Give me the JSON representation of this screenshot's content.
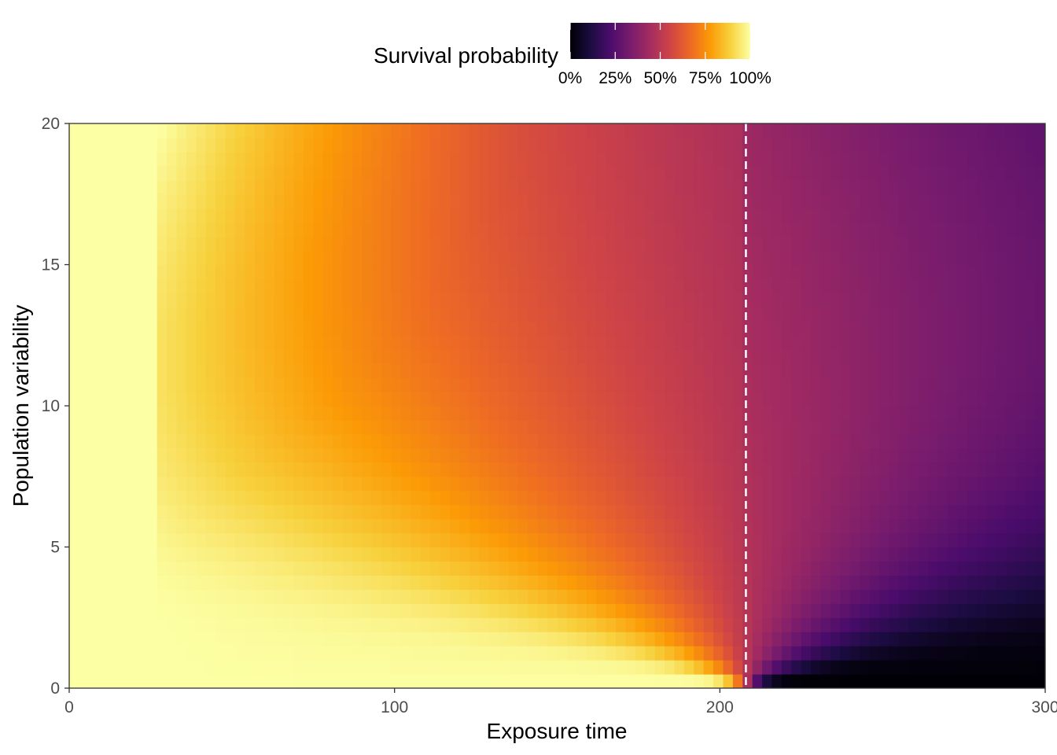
{
  "chart_data": {
    "type": "heatmap",
    "title": "",
    "xlabel": "Exposure time",
    "ylabel": "Population variability",
    "xlim": [
      0,
      300
    ],
    "ylim": [
      0,
      20
    ],
    "x_ticks": [
      0,
      100,
      200,
      300
    ],
    "x_tick_labels": [
      "0",
      "100",
      "200",
      "300"
    ],
    "y_ticks": [
      0,
      5,
      10,
      15,
      20
    ],
    "y_tick_labels": [
      "0",
      "5",
      "10",
      "15",
      "20"
    ],
    "grid": false,
    "colormap": "inferno",
    "colormap_stops": [
      "#000004",
      "#1b0c41",
      "#4a0c6b",
      "#781c6d",
      "#a52c60",
      "#cf4446",
      "#ed6925",
      "#fb9b06",
      "#f7d13d",
      "#fcffa4"
    ],
    "surface": {
      "description_free_parameters": true,
      "x_step": 3,
      "y_step": 0.5,
      "flat_region_end_x": 28,
      "rate_constant": 0.0048,
      "threshold_x": 208,
      "outside_variability_clip_y": 8,
      "x_range": [
        0,
        300
      ],
      "y_range": [
        0,
        20
      ]
    },
    "reference_lines": [
      {
        "orientation": "vertical",
        "x": 208,
        "style": "dashed",
        "color": "#ffffff"
      }
    ],
    "legend": {
      "title": "Survival probability",
      "position": "top",
      "values": [
        0,
        0.25,
        0.5,
        0.75,
        1
      ],
      "labels": [
        "0%",
        "25%",
        "50%",
        "75%",
        "100%"
      ]
    }
  }
}
